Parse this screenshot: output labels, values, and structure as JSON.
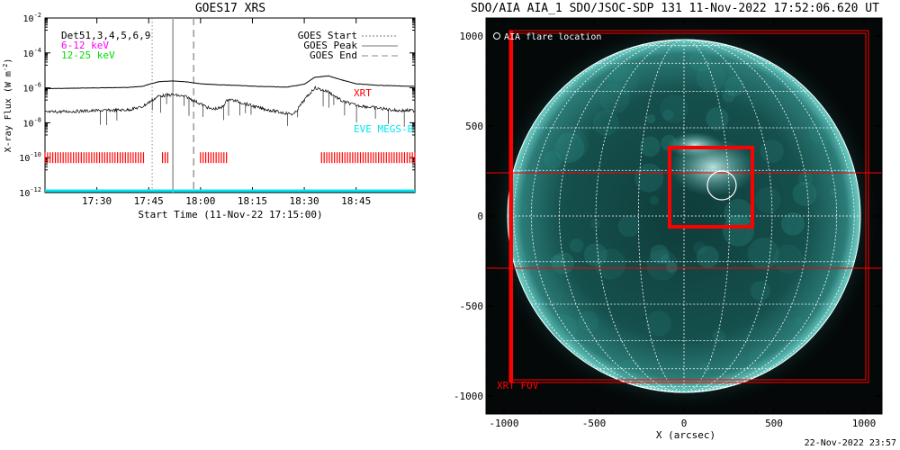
{
  "chart_data": [
    {
      "type": "line",
      "title": "GOES17 XRS",
      "xlabel": "Start Time (11-Nov-22 17:15:00)",
      "ylabel": "X-ray Flux (W m",
      "ylabel_sup": "-2",
      "xlim_minutes": [
        0,
        107
      ],
      "ylim": [
        1e-12,
        0.01
      ],
      "yscale": "log",
      "x_ticks": [
        {
          "minute": 15,
          "label": "17:30"
        },
        {
          "minute": 30,
          "label": "17:45"
        },
        {
          "minute": 45,
          "label": "18:00"
        },
        {
          "minute": 60,
          "label": "18:15"
        },
        {
          "minute": 75,
          "label": "18:30"
        },
        {
          "minute": 90,
          "label": "18:45"
        }
      ],
      "y_ticks": [
        {
          "exp": "-2"
        },
        {
          "exp": "-4"
        },
        {
          "exp": "-6"
        },
        {
          "exp": "-8"
        },
        {
          "exp": "-10"
        },
        {
          "exp": "-12"
        }
      ],
      "det_text": "Det51,3,4,5,6,9",
      "band_low": {
        "label": "6-12 keV",
        "color": "#ff00ff"
      },
      "band_high": {
        "label": "12-25 keV",
        "color": "#00dd00"
      },
      "legend": [
        "GOES Start",
        "GOES Peak",
        "GOES End"
      ],
      "xrt_label": "XRT",
      "xrt_color": "#ff0000",
      "eve_label": "EVE MEGS-B",
      "eve_color": "#00e5ee",
      "markers": {
        "start": 31,
        "peak": 37,
        "end": 43
      },
      "series": [
        {
          "band": "long",
          "x": [
            0,
            8,
            16,
            24,
            28,
            33,
            37,
            41,
            45,
            50,
            55,
            62,
            70,
            75,
            78,
            82,
            86,
            90,
            96,
            102,
            107
          ],
          "y": [
            9e-07,
            9.5e-07,
            1e-06,
            1.05e-06,
            1.2e-06,
            2.3e-06,
            2.5e-06,
            2.2e-06,
            1.7e-06,
            1.5e-06,
            1.4e-06,
            1.2e-06,
            1.1e-06,
            1.6e-06,
            4e-06,
            4.8e-06,
            2.8e-06,
            1.7e-06,
            1.4e-06,
            1.3e-06,
            1.2e-06
          ]
        },
        {
          "band": "short",
          "x": [
            0,
            8,
            16,
            24,
            28,
            33,
            37,
            41,
            45,
            48,
            51,
            53,
            56,
            62,
            68,
            72,
            75,
            78,
            82,
            86,
            90,
            96,
            102,
            107
          ],
          "y": [
            4e-08,
            4.5e-08,
            5e-08,
            5.5e-08,
            8e-08,
            3.5e-07,
            4e-07,
            3e-07,
            1.2e-07,
            6e-08,
            7e-08,
            2.3e-07,
            1.6e-07,
            7e-08,
            4e-08,
            3e-08,
            2e-07,
            1e-06,
            6e-07,
            1.7e-07,
            1e-07,
            7e-08,
            5e-08,
            5e-08
          ]
        }
      ],
      "xrt_coverage_minutes": [
        [
          0,
          29
        ],
        [
          34,
          36
        ],
        [
          45,
          52.5
        ],
        [
          80,
          107
        ]
      ]
    },
    {
      "type": "image",
      "title": "SDO/AIA AIA_1 SDO/JSOC-SDP 131 11-Nov-2022 17:52:06.620 UT",
      "xlabel": "X (arcsec)",
      "ylabel": "Y (arcsec)",
      "xlim": [
        -1100,
        1100
      ],
      "ylim": [
        -1100,
        1100
      ],
      "ticks": [
        -1000,
        -500,
        0,
        500,
        1000
      ],
      "tick_labels": [
        "-1000",
        "-500",
        "0",
        "500",
        "1000"
      ],
      "solar_radius_arcsec": 980,
      "flare_location_label": "AIA flare location",
      "flare_location": {
        "x": 210,
        "y": 170
      },
      "xrt_fov_label": "XRT FOV",
      "xrt_fov": {
        "x": [
          -970,
          1025
        ],
        "y": [
          -925,
          1030
        ]
      },
      "cutout_box": {
        "x": [
          -80,
          380
        ],
        "y": [
          -60,
          380
        ]
      },
      "band_y": [
        240,
        -290
      ],
      "left_edge_x": -960
    }
  ],
  "footer": {
    "timestamp": "22-Nov-2022 23:57"
  }
}
